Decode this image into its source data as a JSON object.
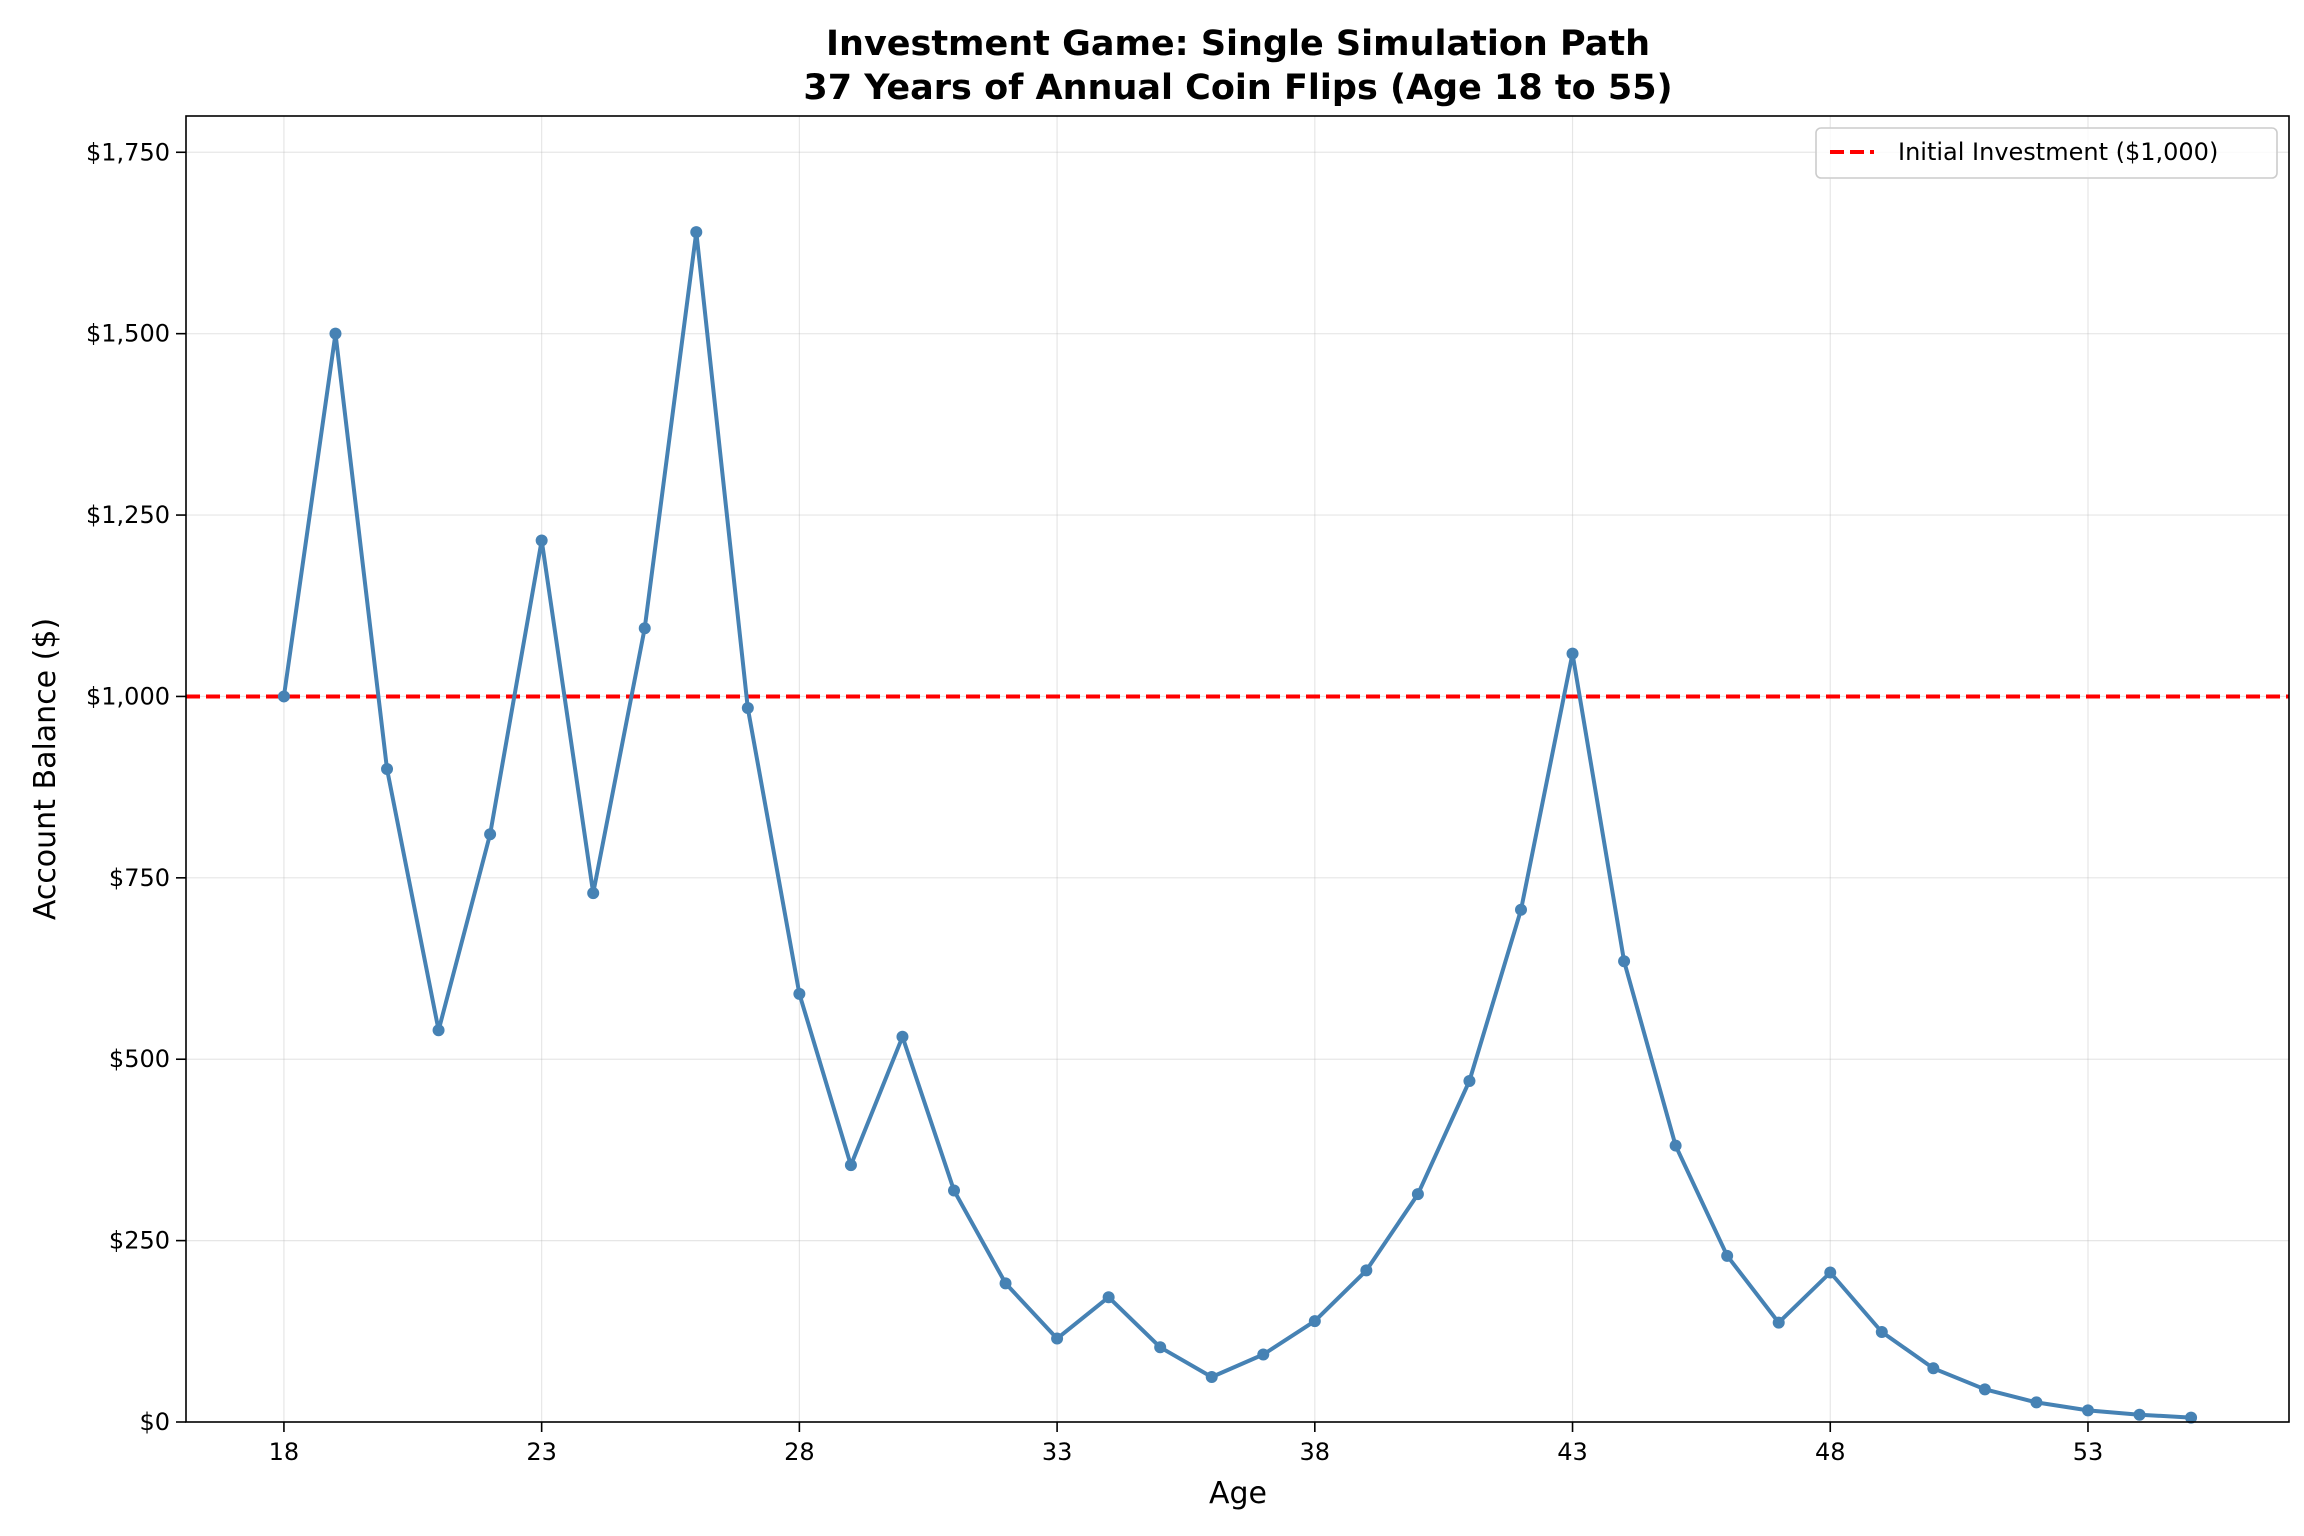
{
  "chart_data": {
    "type": "line",
    "title_line1": "Investment Game: Single Simulation Path",
    "title_line2": "37 Years of Annual Coin Flips (Age 18 to 55)",
    "xlabel": "Age",
    "ylabel": "Account Balance ($)",
    "xlim": [
      16.1,
      56.9
    ],
    "ylim": [
      0,
      1800
    ],
    "x_ticks": [
      18,
      23,
      28,
      33,
      38,
      43,
      48,
      53
    ],
    "y_ticks": [
      0,
      250,
      500,
      750,
      1000,
      1250,
      1500,
      1750
    ],
    "y_tick_labels": [
      "$0",
      "$250",
      "$500",
      "$750",
      "$1,000",
      "$1,250",
      "$1,500",
      "$1,750"
    ],
    "grid": true,
    "legend_position": "top-right",
    "series": [
      {
        "color": "#4682b4",
        "x": [
          18,
          19,
          20,
          21,
          22,
          23,
          24,
          25,
          26,
          27,
          28,
          29,
          30,
          31,
          32,
          33,
          34,
          35,
          36,
          37,
          38,
          39,
          40,
          41,
          42,
          43,
          44,
          45,
          46,
          47,
          48,
          49,
          50,
          51,
          52,
          53,
          54,
          55
        ],
        "values": [
          1000,
          1500,
          900,
          540,
          810,
          1215,
          729,
          1094,
          1640,
          984,
          590,
          354,
          531,
          319,
          191,
          115,
          172,
          103,
          62,
          93,
          139,
          209,
          314,
          470,
          706,
          1059,
          635,
          381,
          229,
          137,
          206,
          124,
          74,
          45,
          27,
          16,
          10,
          6
        ]
      }
    ],
    "reference_lines": [
      {
        "name": "Initial Investment ($1,000)",
        "y": 1000,
        "color": "#ff0000",
        "style": "dashed"
      }
    ]
  }
}
